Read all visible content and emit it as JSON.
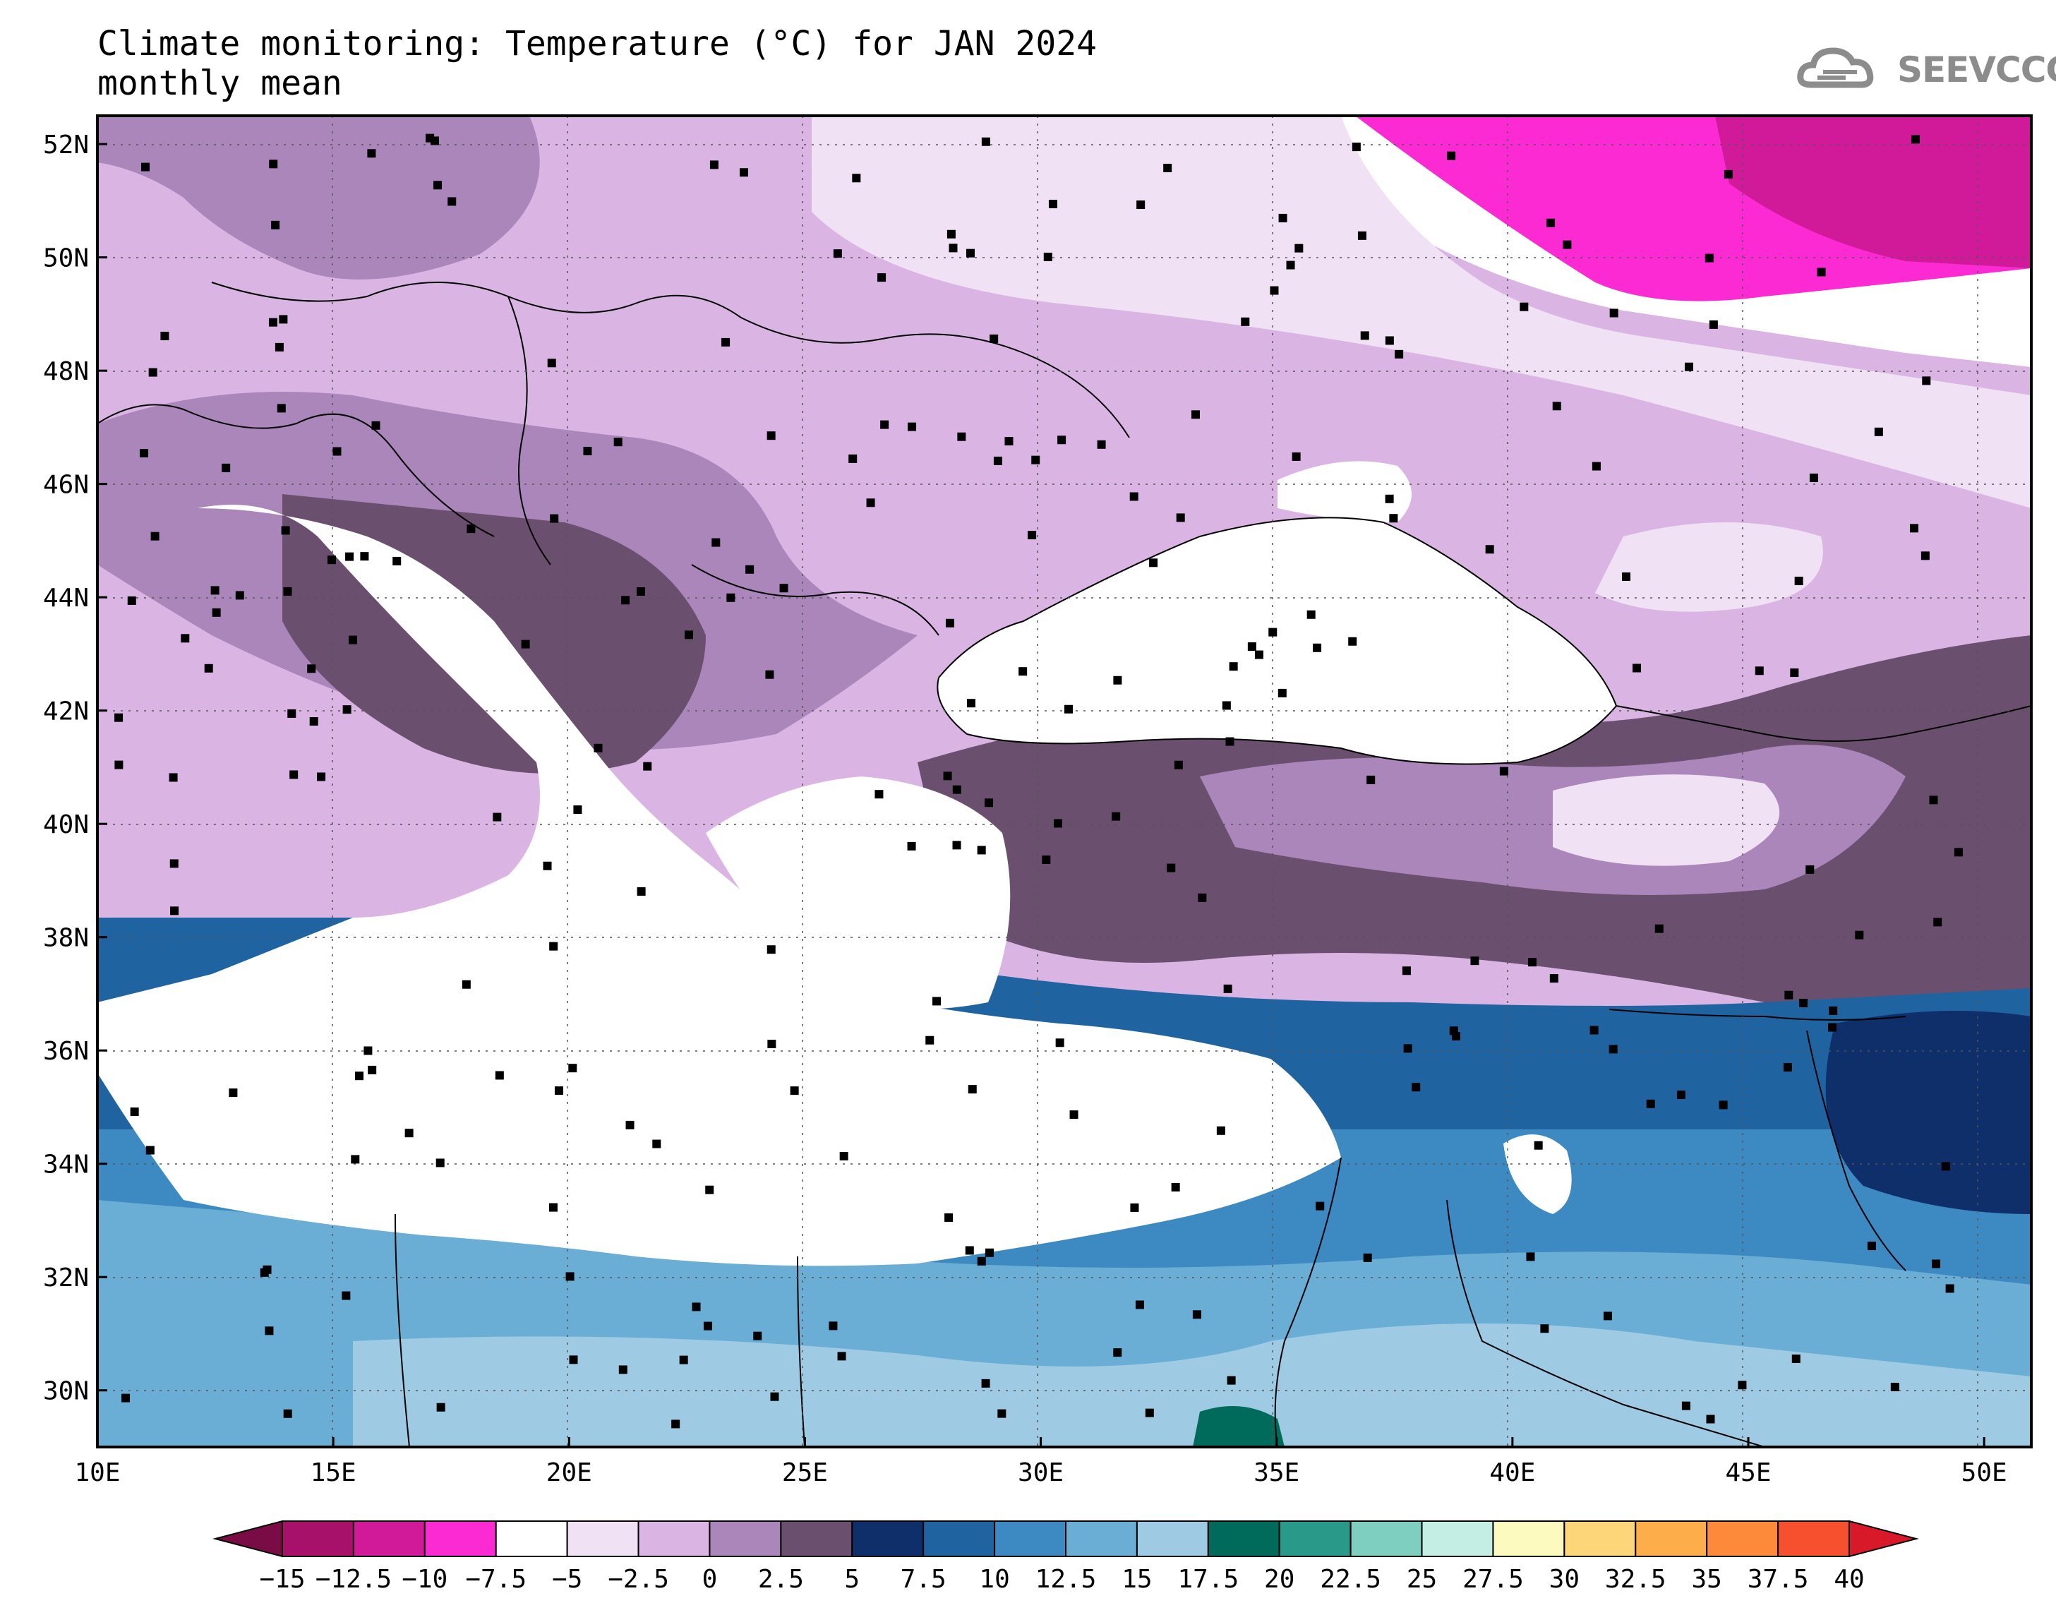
{
  "title": "Climate monitoring: Temperature (°C) for JAN 2024",
  "subtitle": "monthly mean",
  "logo": {
    "text": "SEEVCCC",
    "icon": "cloud-icon"
  },
  "map": {
    "lon_range": [
      10,
      51
    ],
    "lat_range": [
      29,
      52.5
    ],
    "x_ticks": [
      "10E",
      "15E",
      "20E",
      "25E",
      "30E",
      "35E",
      "40E",
      "45E",
      "50E"
    ],
    "y_ticks": [
      "52N",
      "50N",
      "48N",
      "46N",
      "44N",
      "42N",
      "40N",
      "38N",
      "36N",
      "34N",
      "32N",
      "30N"
    ],
    "grid": "dotted",
    "note_stations": "black square markers denote observing stations"
  },
  "colorbar": {
    "labels": [
      "−15",
      "−12.5",
      "−10",
      "−7.5",
      "−5",
      "−2.5",
      "0",
      "2.5",
      "5",
      "7.5",
      "10",
      "12.5",
      "15",
      "17.5",
      "20",
      "22.5",
      "25",
      "27.5",
      "30",
      "32.5",
      "35",
      "37.5",
      "40"
    ],
    "colors": [
      "#7a0c45",
      "#a8116a",
      "#d01a9a",
      "#fb2ad2",
      "#ffffff",
      "#f0e2f4",
      "#dab5e4",
      "#ab86bb",
      "#6b4f6f",
      "#0f2f6b",
      "#1f63a0",
      "#3d8ac3",
      "#6aaed6",
      "#9ecbe3",
      "#006b5a",
      "#29998a",
      "#7ecfbf",
      "#c4ede3",
      "#fdfac0",
      "#fdd67a",
      "#fdae4a",
      "#fc8a3a",
      "#f7502e",
      "#d8192a"
    ]
  }
}
